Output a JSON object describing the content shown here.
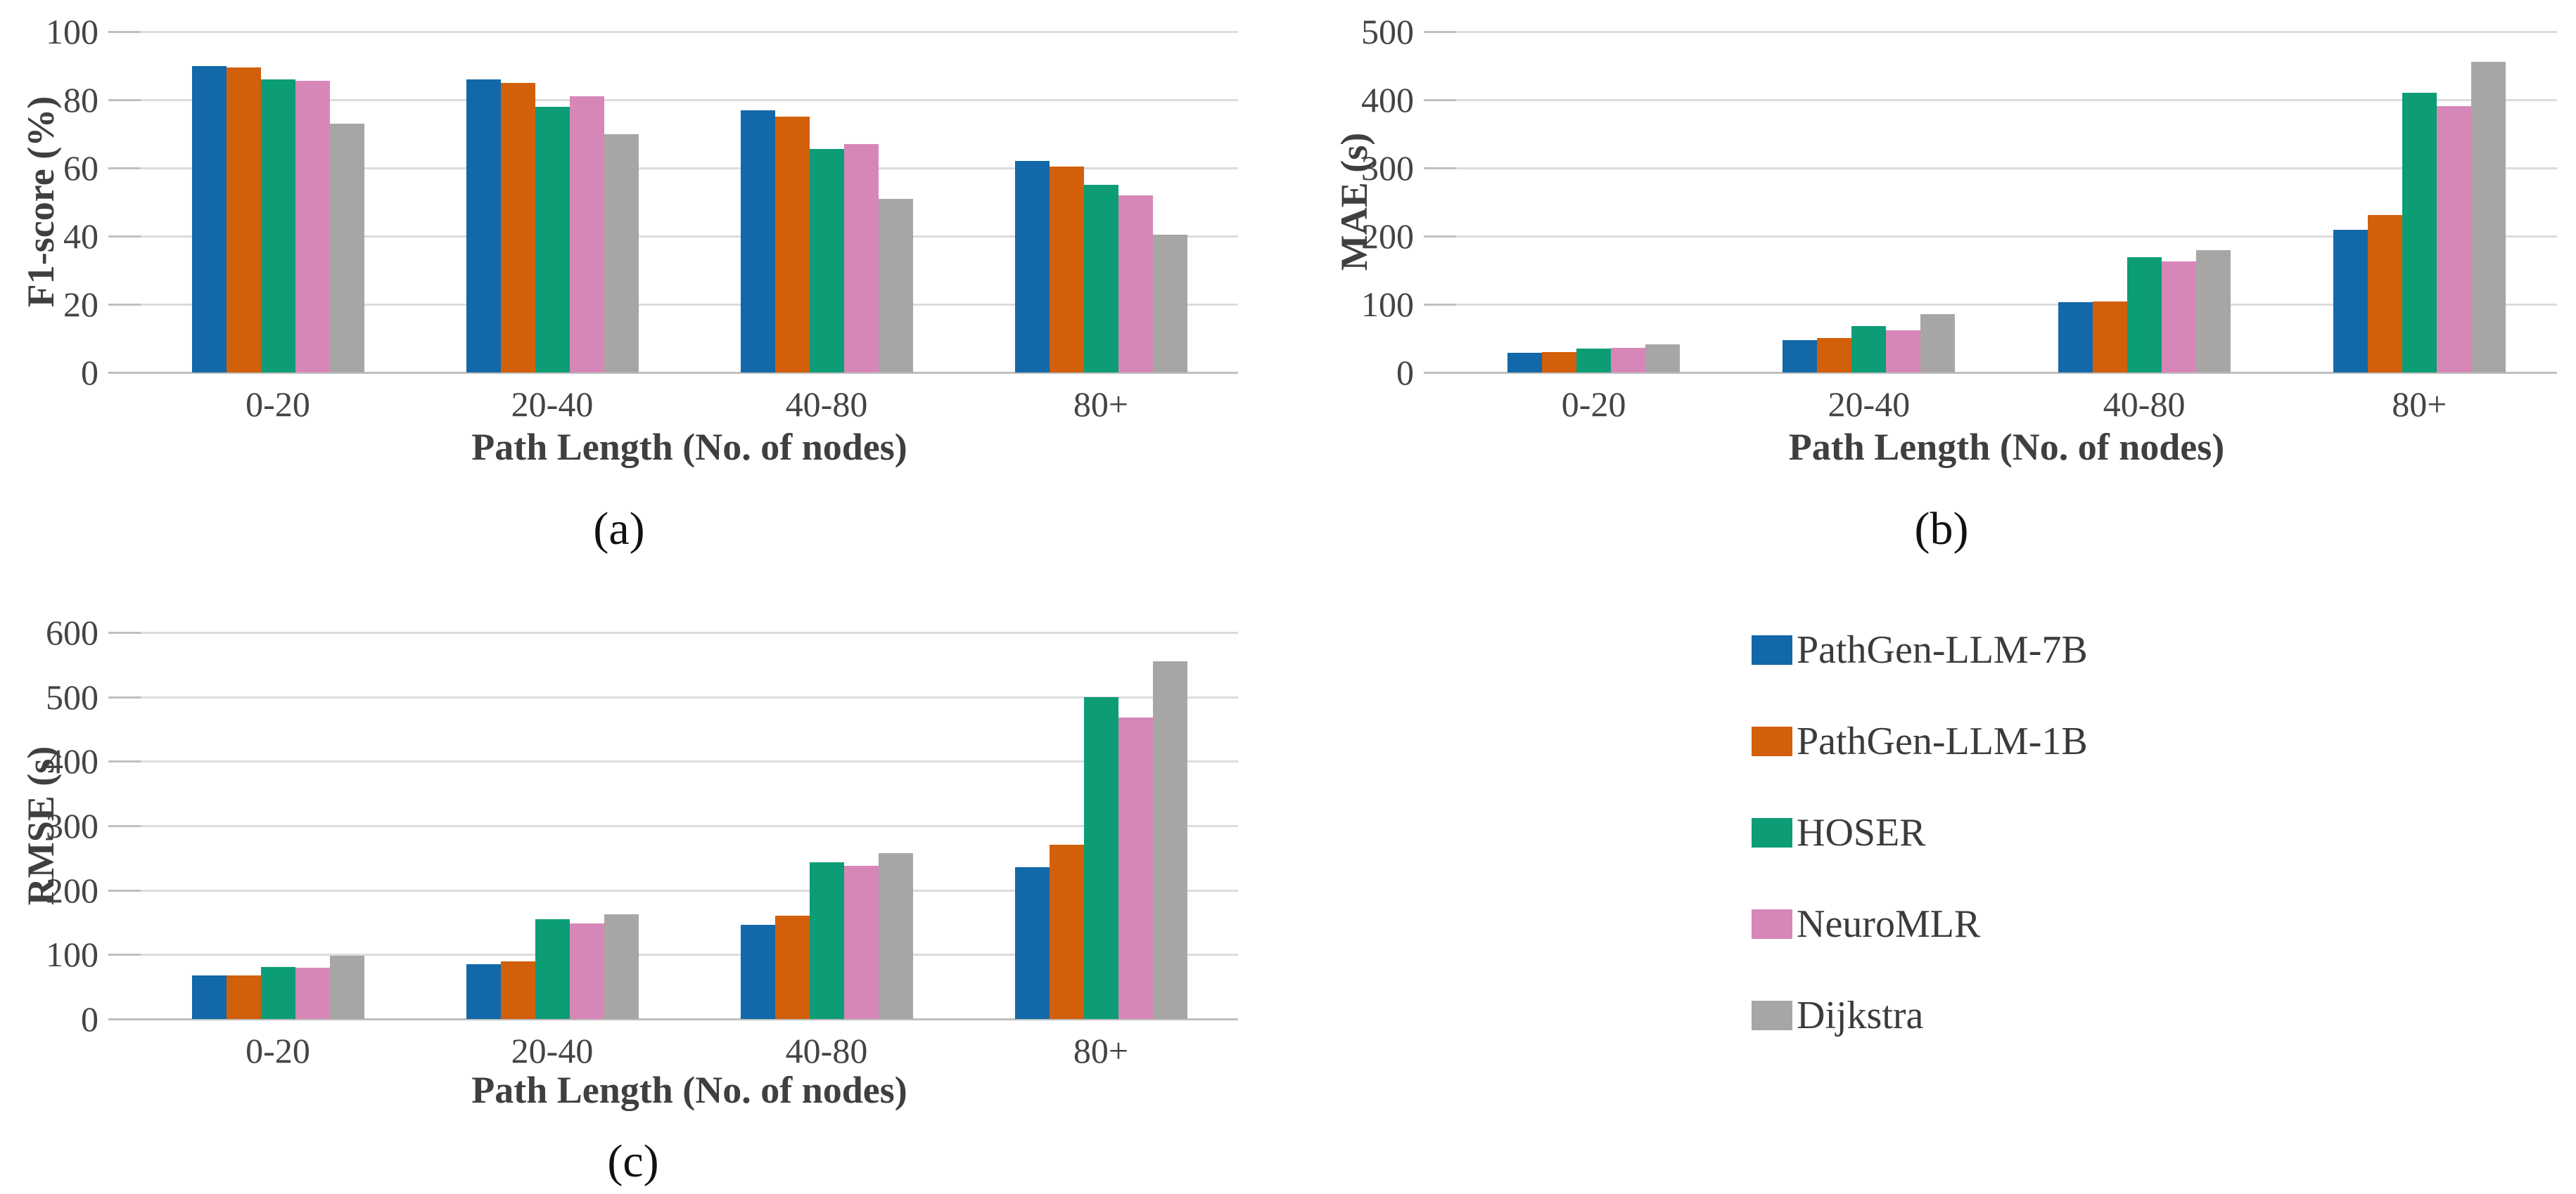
{
  "figure": {
    "background": "#ffffff",
    "gridline_color": "#dcdcdc",
    "axis_text_color": "#444444"
  },
  "legend": {
    "position": "bottom-right-panel",
    "items": [
      {
        "label": "PathGen-LLM-7B",
        "color": "#1268a8"
      },
      {
        "label": "PathGen-LLM-1B",
        "color": "#d25f0a"
      },
      {
        "label": "HOSER",
        "color": "#0c9d76"
      },
      {
        "label": "NeuroMLR",
        "color": "#d687b8"
      },
      {
        "label": "Dijkstra",
        "color": "#a8a5a5"
      }
    ]
  },
  "chart_data": [
    {
      "type": "bar",
      "caption": "(a)",
      "title": "",
      "ylabel": "F1-score (%)",
      "xlabel": "Path Length (No. of nodes)",
      "ylim": [
        0,
        100
      ],
      "yticks": [
        0,
        20,
        40,
        60,
        80,
        100
      ],
      "grid": true,
      "categories": [
        "0-20",
        "20-40",
        "40-80",
        "80+"
      ],
      "series": [
        {
          "name": "PathGen-LLM-7B",
          "values": [
            90,
            86,
            77,
            62
          ]
        },
        {
          "name": "PathGen-LLM-1B",
          "values": [
            89.5,
            85,
            75,
            60.5
          ]
        },
        {
          "name": "HOSER",
          "values": [
            86,
            78,
            65.5,
            55
          ]
        },
        {
          "name": "NeuroMLR",
          "values": [
            85.5,
            81,
            67,
            52
          ]
        },
        {
          "name": "Dijkstra",
          "values": [
            73,
            70,
            51,
            40.5
          ]
        }
      ]
    },
    {
      "type": "bar",
      "caption": "(b)",
      "title": "",
      "ylabel": "MAE (s)",
      "xlabel": "Path Length (No. of nodes)",
      "ylim": [
        0,
        500
      ],
      "yticks": [
        0,
        100,
        200,
        300,
        400,
        500
      ],
      "grid": true,
      "categories": [
        "0-20",
        "20-40",
        "40-80",
        "80+"
      ],
      "series": [
        {
          "name": "PathGen-LLM-7B",
          "values": [
            29,
            47,
            103,
            209
          ]
        },
        {
          "name": "PathGen-LLM-1B",
          "values": [
            30,
            51,
            104,
            231
          ]
        },
        {
          "name": "HOSER",
          "values": [
            35,
            68,
            169,
            410
          ]
        },
        {
          "name": "NeuroMLR",
          "values": [
            36,
            62,
            163,
            391
          ]
        },
        {
          "name": "Dijkstra",
          "values": [
            41,
            86,
            179,
            456
          ]
        }
      ]
    },
    {
      "type": "bar",
      "caption": "(c)",
      "title": "",
      "ylabel": "RMSE (s)",
      "xlabel": "Path Length (No. of nodes)",
      "ylim": [
        0,
        600
      ],
      "yticks": [
        0,
        100,
        200,
        300,
        400,
        500,
        600
      ],
      "grid": true,
      "categories": [
        "0-20",
        "20-40",
        "40-80",
        "80+"
      ],
      "series": [
        {
          "name": "PathGen-LLM-7B",
          "values": [
            68,
            85,
            146,
            236
          ]
        },
        {
          "name": "PathGen-LLM-1B",
          "values": [
            68,
            90,
            160,
            271
          ]
        },
        {
          "name": "HOSER",
          "values": [
            81,
            155,
            243,
            500
          ]
        },
        {
          "name": "NeuroMLR",
          "values": [
            80,
            148,
            238,
            468
          ]
        },
        {
          "name": "Dijkstra",
          "values": [
            98,
            163,
            257,
            555
          ]
        }
      ]
    }
  ]
}
